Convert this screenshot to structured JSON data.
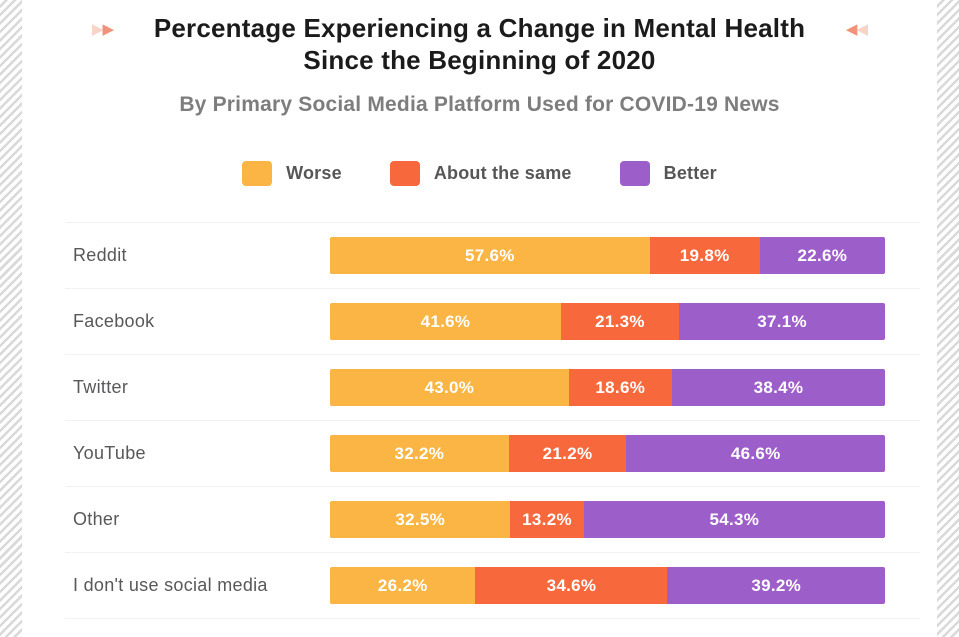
{
  "header": {
    "title_line1": "Percentage Experiencing a Change in Mental Health",
    "title_line2": "Since the Beginning of 2020",
    "subtitle": "By Primary Social Media Platform Used for COVID-19 News"
  },
  "decor": {
    "right_glyph": "▶",
    "left_glyph": "◀",
    "arrow_strong_color": "#F0937A",
    "arrow_faint_color": "#F8D3C7"
  },
  "colors": {
    "worse": "#FBB545",
    "about_the_same": "#F7693C",
    "better": "#9C5EC9",
    "title_text": "#1b1b1b",
    "subtitle_text": "#7d7d7d",
    "label_text": "#58585a",
    "separator": "#f1f1f1",
    "stripe_border": "#d9d9d9"
  },
  "chart_data": {
    "type": "bar",
    "variant": "horizontal-stacked",
    "title": "Percentage Experiencing a Change in Mental Health Since the Beginning of 2020",
    "subtitle": "By Primary Social Media Platform Used for COVID-19 News",
    "unit": "%",
    "xlim": [
      0,
      100
    ],
    "grid": false,
    "legend_position": "top",
    "categories": [
      "Reddit",
      "Facebook",
      "Twitter",
      "YouTube",
      "Other",
      "I don't use social media"
    ],
    "series": [
      {
        "name": "Worse",
        "color": "#FBB545",
        "values": [
          57.6,
          41.6,
          43.0,
          32.2,
          32.5,
          26.2
        ],
        "labels": [
          "57.6%",
          "41.6%",
          "43.0%",
          "32.2%",
          "32.5%",
          "26.2%"
        ]
      },
      {
        "name": "About the same",
        "color": "#F7693C",
        "values": [
          19.8,
          21.3,
          18.6,
          21.2,
          13.2,
          34.6
        ],
        "labels": [
          "19.8%",
          "21.3%",
          "18.6%",
          "21.2%",
          "13.2%",
          "34.6%"
        ]
      },
      {
        "name": "Better",
        "color": "#9C5EC9",
        "values": [
          22.6,
          37.1,
          38.4,
          46.6,
          54.3,
          39.2
        ],
        "labels": [
          "22.6%",
          "37.1%",
          "38.4%",
          "46.6%",
          "54.3%",
          "39.2%"
        ]
      }
    ]
  }
}
